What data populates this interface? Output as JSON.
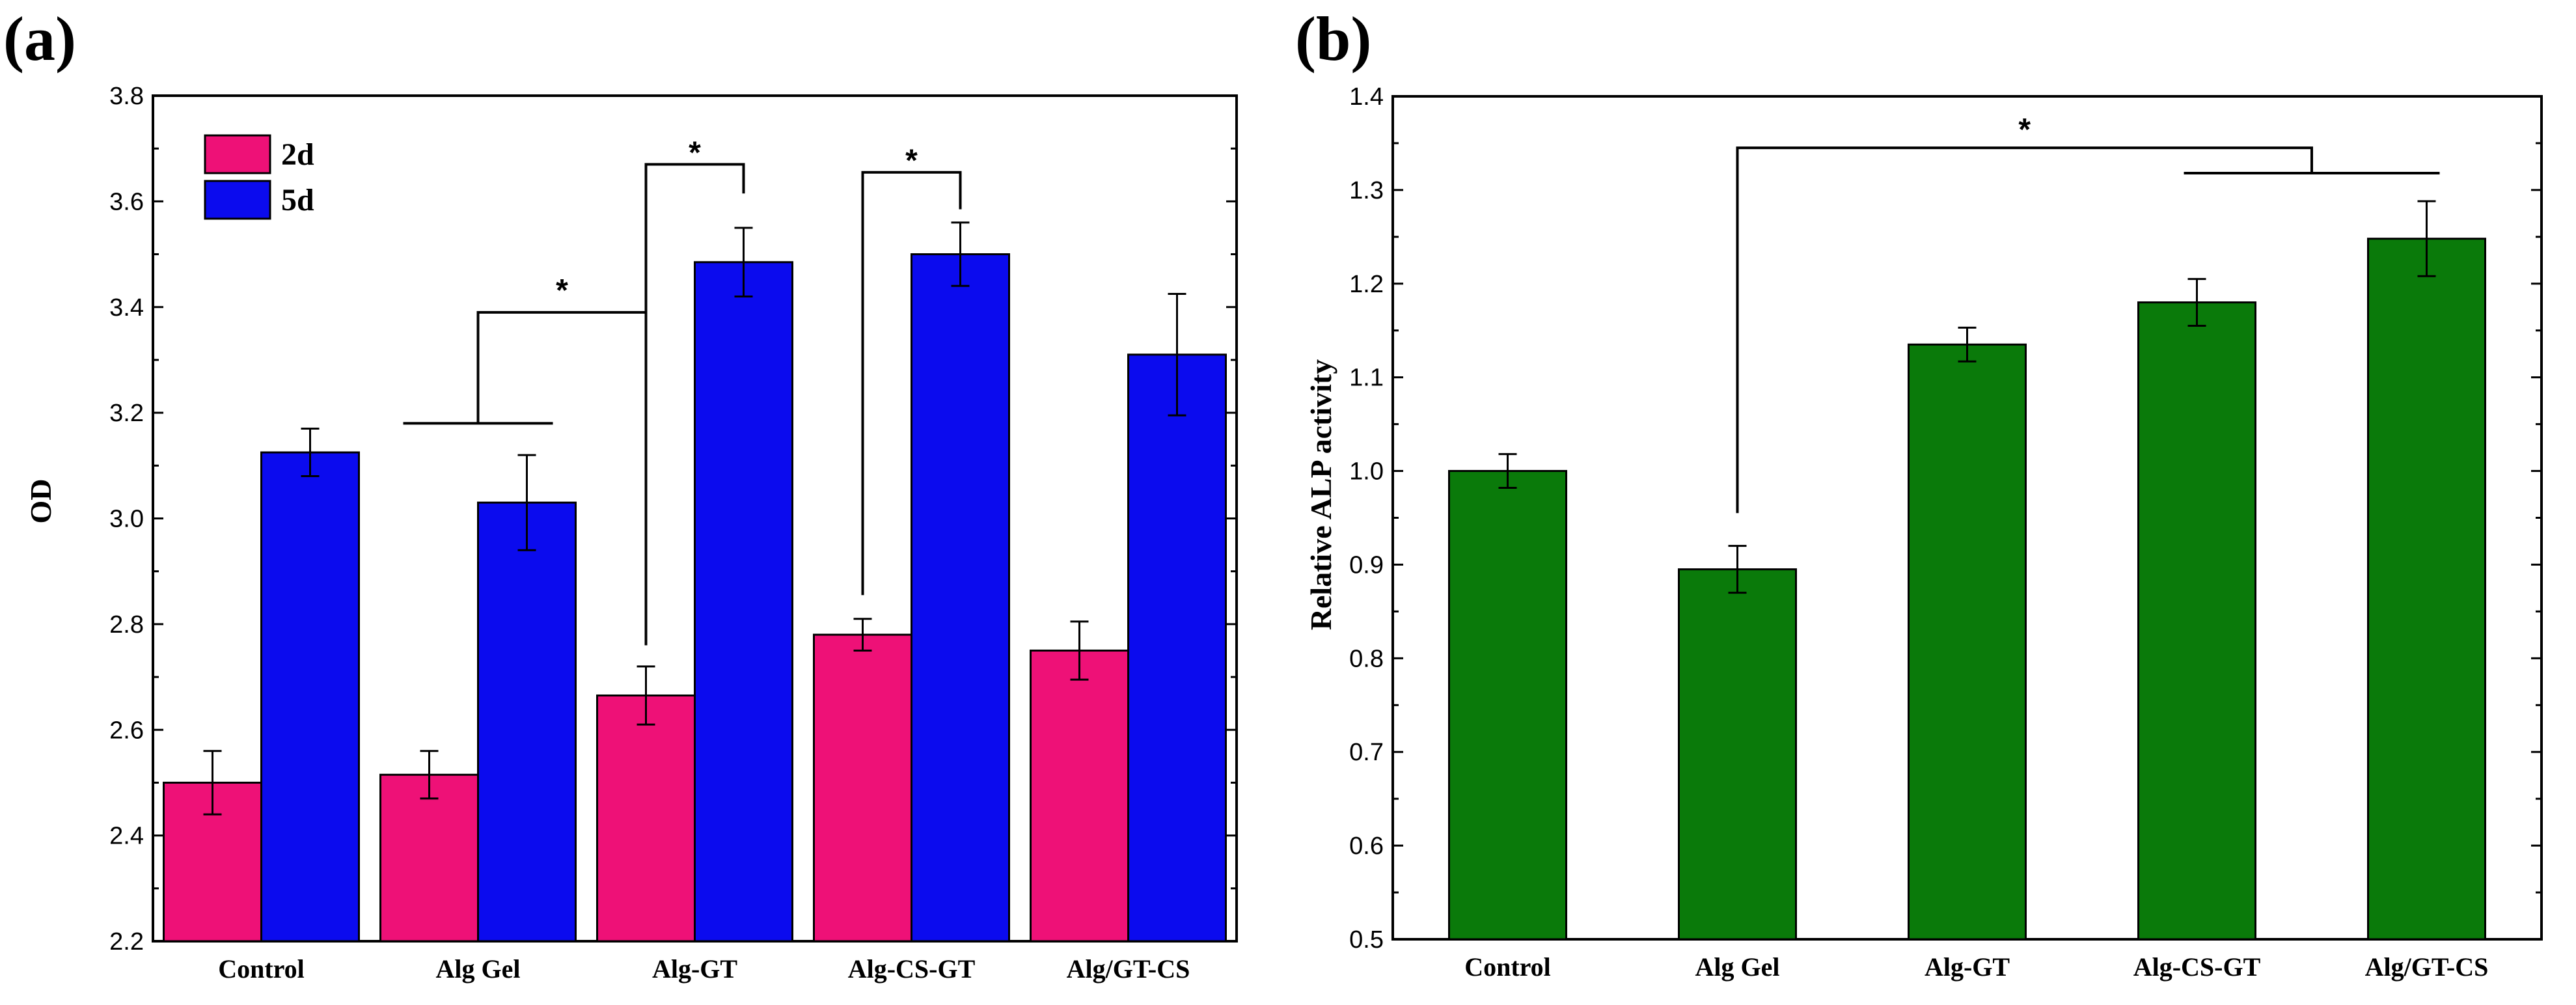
{
  "chart_data": [
    {
      "panel": "(a)",
      "type": "bar",
      "title": "",
      "xlabel": "",
      "ylabel": "OD",
      "ylim": [
        2.2,
        3.8
      ],
      "yticks": [
        "2.2",
        "2.4",
        "2.6",
        "2.8",
        "3.0",
        "3.2",
        "3.4",
        "3.6",
        "3.8"
      ],
      "categories": [
        "Control",
        "Alg Gel",
        "Alg-GT",
        "Alg-CS-GT",
        "Alg/GT-CS"
      ],
      "series": [
        {
          "name": "2d",
          "color": "#ee1177",
          "values": [
            2.5,
            2.515,
            2.665,
            2.78,
            2.75
          ],
          "errors": [
            0.06,
            0.045,
            0.055,
            0.03,
            0.055
          ]
        },
        {
          "name": "5d",
          "color": "#0b0bee",
          "values": [
            3.125,
            3.03,
            3.485,
            3.5,
            3.31
          ],
          "errors": [
            0.045,
            0.09,
            0.065,
            0.06,
            0.115
          ]
        }
      ],
      "legend_position": "top-left",
      "significance": [
        "*",
        "*",
        "*"
      ]
    },
    {
      "panel": "(b)",
      "type": "bar",
      "title": "",
      "xlabel": "",
      "ylabel": "Relative ALP activity",
      "ylim": [
        0.5,
        1.4
      ],
      "yticks": [
        "0.5",
        "0.6",
        "0.7",
        "0.8",
        "0.9",
        "1.0",
        "1.1",
        "1.2",
        "1.3",
        "1.4"
      ],
      "categories": [
        "Control",
        "Alg Gel",
        "Alg-GT",
        "Alg-CS-GT",
        "Alg/GT-CS"
      ],
      "series": [
        {
          "color": "#0a7a0a",
          "values": [
            1.0,
            0.895,
            1.135,
            1.18,
            1.248
          ],
          "errors": [
            0.018,
            0.025,
            0.018,
            0.025,
            0.04
          ]
        }
      ],
      "significance": [
        "*"
      ]
    }
  ]
}
